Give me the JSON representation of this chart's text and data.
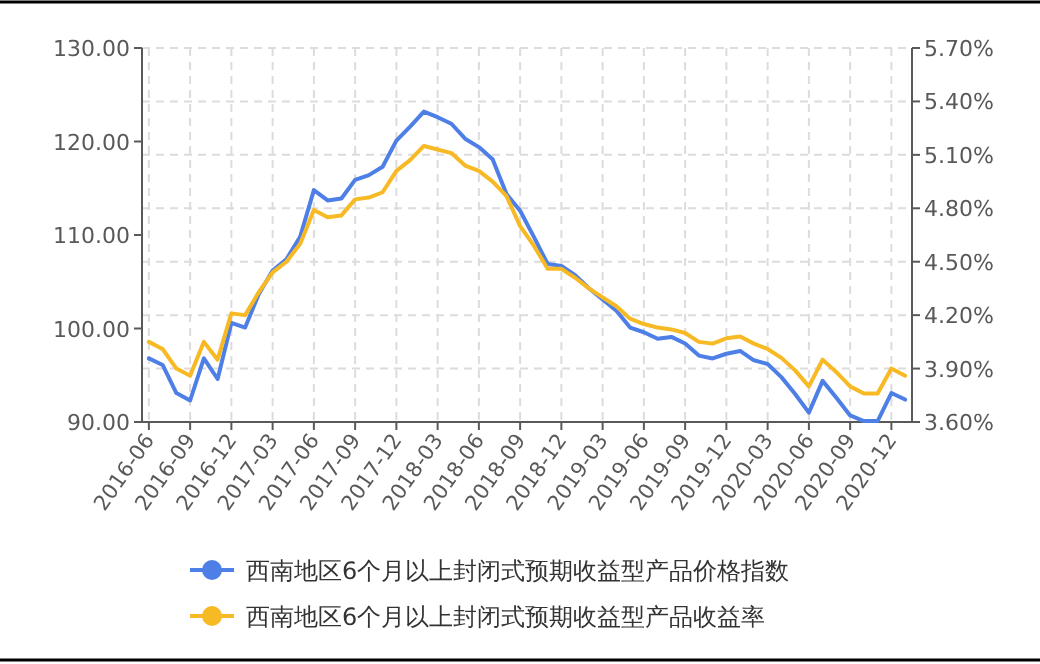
{
  "chart_data": {
    "type": "line",
    "categories": [
      "2016-06",
      null,
      null,
      "2016-09",
      null,
      null,
      "2016-12",
      null,
      null,
      "2017-03",
      null,
      null,
      "2017-06",
      null,
      null,
      "2017-09",
      null,
      null,
      "2017-12",
      null,
      null,
      "2018-03",
      null,
      null,
      "2018-06",
      null,
      null,
      "2018-09",
      null,
      null,
      "2018-12",
      null,
      null,
      "2019-03",
      null,
      null,
      "2019-06",
      null,
      null,
      "2019-09",
      null,
      null,
      "2019-12",
      null,
      null,
      "2020-03",
      null,
      null,
      "2020-06",
      null,
      null,
      "2020-09",
      null,
      null,
      "2020-12",
      null
    ],
    "series": [
      {
        "name": "西南地区6个月以上封闭式预期收益型产品价格指数",
        "color": "#4e7fe6",
        "values": [
          96.8,
          96.1,
          93.1,
          92.3,
          96.8,
          94.6,
          100.6,
          100.1,
          103.7,
          106.2,
          107.4,
          109.8,
          114.8,
          113.7,
          113.9,
          115.9,
          116.4,
          117.3,
          120.1,
          121.6,
          123.2,
          122.6,
          121.9,
          120.3,
          119.4,
          118.1,
          114.4,
          112.6,
          109.8,
          106.9,
          106.7,
          105.7,
          104.3,
          103.1,
          101.9,
          100.1,
          99.6,
          98.9,
          99.1,
          98.4,
          97.1,
          96.8,
          97.3,
          97.6,
          96.6,
          96.2,
          94.8,
          93.0,
          91.0,
          94.4,
          92.6,
          90.7,
          90.1,
          90.1,
          93.1,
          92.4
        ]
      },
      {
        "name": "西南地区6个月以上封闭式预期收益型产品收益率",
        "color": "#f7b924",
        "axis": "y2",
        "values": [
          4.05,
          4.01,
          3.9,
          3.86,
          4.05,
          3.95,
          4.21,
          4.2,
          4.33,
          4.44,
          4.5,
          4.6,
          4.79,
          4.75,
          4.76,
          4.85,
          4.86,
          4.89,
          5.01,
          5.07,
          5.15,
          5.13,
          5.11,
          5.04,
          5.01,
          4.95,
          4.87,
          4.7,
          4.59,
          4.46,
          4.46,
          4.41,
          4.35,
          4.3,
          4.25,
          4.18,
          4.15,
          4.13,
          4.12,
          4.1,
          4.05,
          4.04,
          4.07,
          4.08,
          4.04,
          4.01,
          3.96,
          3.89,
          3.8,
          3.95,
          3.88,
          3.8,
          3.76,
          3.76,
          3.9,
          3.86
        ]
      }
    ],
    "ylim": [
      90,
      130
    ],
    "yticks": [
      {
        "value": 90,
        "label": "90.00"
      },
      {
        "value": 100,
        "label": "100.00"
      },
      {
        "value": 110,
        "label": "110.00"
      },
      {
        "value": 120,
        "label": "120.00"
      },
      {
        "value": 130,
        "label": "130.00"
      }
    ],
    "y2lim": [
      3.6,
      5.7
    ],
    "y2ticks": [
      {
        "value": 3.6,
        "label": "3.60%"
      },
      {
        "value": 3.9,
        "label": "3.90%"
      },
      {
        "value": 4.2,
        "label": "4.20%"
      },
      {
        "value": 4.5,
        "label": "4.50%"
      },
      {
        "value": 4.8,
        "label": "4.80%"
      },
      {
        "value": 5.1,
        "label": "5.10%"
      },
      {
        "value": 5.4,
        "label": "5.40%"
      },
      {
        "value": 5.7,
        "label": "5.70%"
      }
    ],
    "grid": true,
    "legend": "bottom",
    "line_style": "solid"
  }
}
